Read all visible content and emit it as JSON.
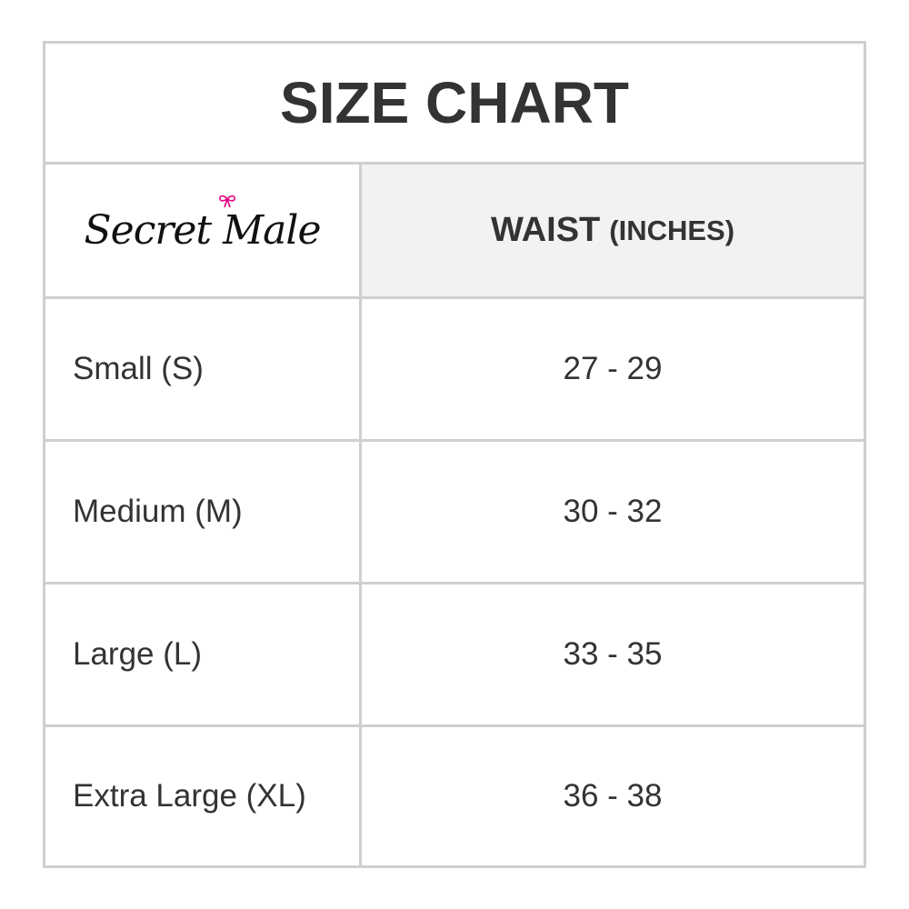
{
  "title": "SIZE CHART",
  "header": {
    "logo_text": "Secret Male",
    "column_label": "WAIST",
    "column_unit": "(INCHES)"
  },
  "accent_color": "#e4007f",
  "rows": [
    {
      "size": "Small (S)",
      "waist": "27 - 29"
    },
    {
      "size": "Medium (M)",
      "waist": "30 - 32"
    },
    {
      "size": "Large (L)",
      "waist": "33 - 35"
    },
    {
      "size": "Extra Large (XL)",
      "waist": "36 - 38"
    }
  ]
}
